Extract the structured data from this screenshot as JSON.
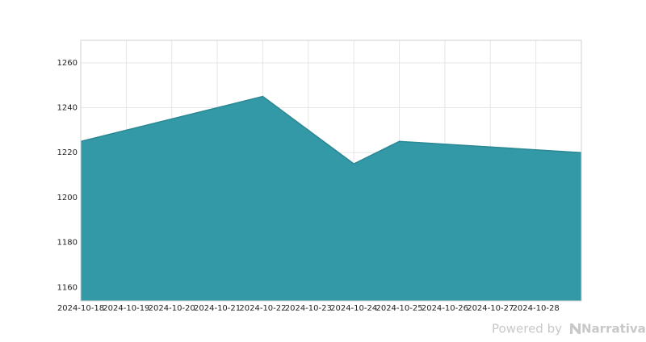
{
  "chart_data": {
    "type": "area",
    "x": [
      "2024-10-18",
      "2024-10-22",
      "2024-10-24",
      "2024-10-25",
      "2024-10-29"
    ],
    "series": [
      {
        "color": "#3399a6",
        "values": [
          1225,
          1245,
          1215,
          1225,
          1220
        ]
      }
    ],
    "xlim": [
      "2024-10-18",
      "2024-10-29"
    ],
    "xticks": [
      "2024-10-18",
      "2024-10-19",
      "2024-10-20",
      "2024-10-21",
      "2024-10-22",
      "2024-10-23",
      "2024-10-24",
      "2024-10-25",
      "2024-10-26",
      "2024-10-27",
      "2024-10-28"
    ],
    "ylim": [
      1154,
      1270
    ],
    "yticks": [
      1160,
      1180,
      1200,
      1220,
      1240,
      1260
    ],
    "grid": true
  },
  "footer": {
    "powered_by": "Powered by",
    "brand": "Narrativa"
  }
}
